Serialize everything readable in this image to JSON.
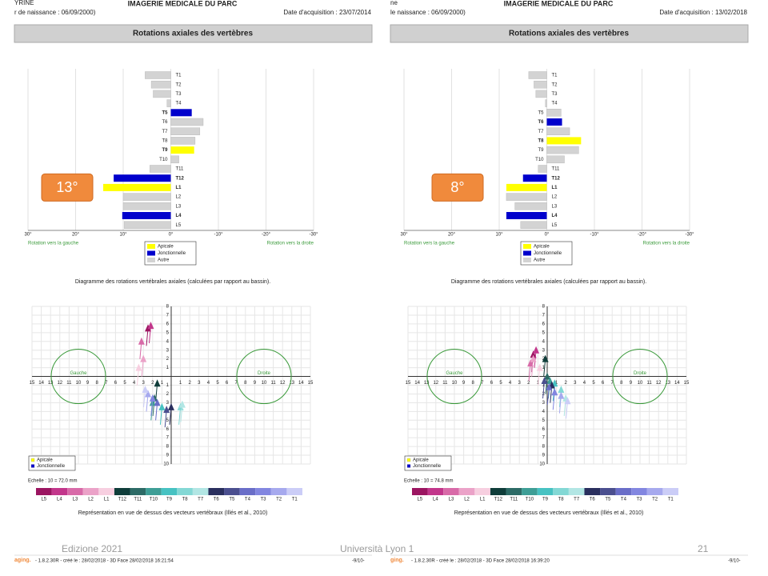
{
  "panels": [
    {
      "patient": "YRINE",
      "birth": "r de naissance : 06/09/2000)",
      "clinic": "IMAGERIE MEDICALE DU PARC",
      "date": "Date d'acquisition : 23/07/2014",
      "section": "Rotations axiales des vertèbres",
      "left_label": "Rotation vers la gauche",
      "right_label": "Rotation vers la droite",
      "caption": "Diagramme des rotations vertébrales axiales (calculées par rapport au bassin).",
      "vectors": {
        "type": "scatter",
        "gauche": "Gauche",
        "droite": "Droite",
        "xlim": [
          -15,
          15
        ],
        "ylim": [
          -10,
          8
        ],
        "xticks": [
          {
            "value": -15,
            "label": "15"
          },
          {
            "value": -14,
            "label": "14"
          },
          {
            "value": -13,
            "label": "13"
          },
          {
            "value": -12,
            "label": "12"
          },
          {
            "value": -11,
            "label": "11"
          },
          {
            "value": -10,
            "label": "10"
          },
          {
            "value": -9,
            "label": "9"
          },
          {
            "value": -8,
            "label": "8"
          },
          {
            "value": -7,
            "label": "7"
          },
          {
            "value": -6,
            "label": "6"
          },
          {
            "value": -5,
            "label": "5"
          },
          {
            "value": -4,
            "label": "4"
          },
          {
            "value": -3,
            "label": "3"
          },
          {
            "value": -2,
            "label": "2"
          },
          {
            "value": -1,
            "label": "1"
          },
          1,
          2,
          3,
          4,
          5,
          6,
          7,
          8,
          9,
          10,
          11,
          12,
          13,
          14,
          15
        ],
        "yticks": [
          8,
          7,
          6,
          5,
          4,
          3,
          2,
          1,
          {
            "value": -1,
            "label": "1"
          },
          {
            "value": -2,
            "label": "2"
          },
          {
            "value": -3,
            "label": "3"
          },
          {
            "value": -4,
            "label": "4"
          },
          {
            "value": -5,
            "label": "5"
          },
          {
            "value": -6,
            "label": "6"
          },
          {
            "value": -7,
            "label": "7"
          },
          {
            "value": -8,
            "label": "8"
          },
          {
            "value": -9,
            "label": "9"
          },
          {
            "value": -10,
            "label": "10"
          }
        ],
        "x": [
          -2.5,
          -2.2,
          -3.2,
          -3,
          -3.5,
          -1.5,
          -1.8,
          -2,
          -1,
          1,
          1.2,
          0,
          -0.5,
          -1.5,
          -2,
          -2.5,
          -2.8
        ],
        "y": [
          5.5,
          5.8,
          4,
          2,
          1,
          -0.8,
          -2.5,
          -3,
          -3.5,
          -3.5,
          -3.2,
          -3.5,
          -3.8,
          -3,
          -2.5,
          -2,
          -1.5
        ],
        "legend": [
          "Apicale",
          "Jonctionnelle"
        ]
      },
      "echelle": "Echelle : 10 = 72.0 mm",
      "scale": {
        "labels": [
          "L5",
          "L4",
          "L3",
          "L2",
          "L1",
          "T12",
          "T11",
          "T10",
          "T9",
          "T8",
          "T7",
          "T6",
          "T5",
          "T4",
          "T3",
          "T2",
          "T1"
        ],
        "colors": [
          "#9b1561",
          "#c2368b",
          "#d86aa8",
          "#eba2c8",
          "#f7cfe0",
          "#0f3d3a",
          "#2d6b66",
          "#3e9e96",
          "#47c2c2",
          "#83d8d5",
          "#b2e6e4",
          "#2a2f5e",
          "#4b4f8f",
          "#6a6ec8",
          "#8286e0",
          "#a6a9ee",
          "#cbcdf7"
        ]
      },
      "caption2": "Représentation en vue de dessus des vecteurs vertébraux (Illés et al., 2010)",
      "footer": {
        "brand": "aging.",
        "info": "- 1.8.2.30R - créé le : 28/02/2018 - 3D Face 28/02/2018 16:21:54",
        "page": "-9/10-"
      }
    },
    {
      "patient": "ne",
      "birth": "le naissance : 06/09/2000)",
      "clinic": "IMAGERIE MEDICALE DU PARC",
      "date": "Date d'acquisition : 13/02/2018",
      "section": "Rotations axiales des vertèbres",
      "left_label": "Rotation vers la gauche",
      "right_label": "Rotation vers la droite",
      "caption": "Diagramme des rotations vertébrales axiales (calculées par rapport au bassin).",
      "vectors": {
        "type": "scatter",
        "gauche": "Gauche",
        "droite": "Droite",
        "xlim": [
          -15,
          15
        ],
        "ylim": [
          -10,
          8
        ],
        "xticks": [
          {
            "value": -15,
            "label": "15"
          },
          {
            "value": -14,
            "label": "14"
          },
          {
            "value": -13,
            "label": "13"
          },
          {
            "value": -12,
            "label": "12"
          },
          {
            "value": -11,
            "label": "11"
          },
          {
            "value": -10,
            "label": "10"
          },
          {
            "value": -9,
            "label": "9"
          },
          {
            "value": -8,
            "label": "8"
          },
          {
            "value": -7,
            "label": "7"
          },
          {
            "value": -6,
            "label": "6"
          },
          {
            "value": -5,
            "label": "5"
          },
          {
            "value": -4,
            "label": "4"
          },
          {
            "value": -3,
            "label": "3"
          },
          {
            "value": -2,
            "label": "2"
          },
          {
            "value": -1,
            "label": "1"
          },
          1,
          2,
          3,
          4,
          5,
          6,
          7,
          8,
          9,
          10,
          11,
          12,
          13,
          14,
          15
        ],
        "yticks": [
          8,
          7,
          6,
          5,
          4,
          3,
          2,
          1,
          {
            "value": -1,
            "label": "1"
          },
          {
            "value": -2,
            "label": "2"
          },
          {
            "value": -3,
            "label": "3"
          },
          {
            "value": -4,
            "label": "4"
          },
          {
            "value": -5,
            "label": "5"
          },
          {
            "value": -6,
            "label": "6"
          },
          {
            "value": -7,
            "label": "7"
          },
          {
            "value": -8,
            "label": "8"
          },
          {
            "value": -9,
            "label": "9"
          },
          {
            "value": -10,
            "label": "10"
          }
        ],
        "x": [
          -1.5,
          -1.2,
          -1.8,
          -1.5,
          -0.8,
          -0.2,
          0,
          0.3,
          0.8,
          1.5,
          2,
          0.5,
          -0.3,
          0.2,
          0.8,
          1.5,
          2.2
        ],
        "y": [
          2.5,
          3,
          1.5,
          2,
          1,
          2,
          0,
          -0.5,
          -0.8,
          -1.5,
          -2.5,
          -1,
          -0.5,
          -1.2,
          -1.8,
          -2.2,
          -2.8
        ],
        "legend": [
          "Apicale",
          "Jonctionnelle"
        ]
      },
      "echelle": "Echelle : 10 = 74.8 mm",
      "scale": {
        "labels": [
          "L5",
          "L4",
          "L3",
          "L2",
          "L1",
          "T12",
          "T11",
          "T10",
          "T9",
          "T8",
          "T7",
          "T6",
          "T5",
          "T4",
          "T3",
          "T2",
          "T1"
        ],
        "colors": [
          "#9b1561",
          "#c2368b",
          "#d86aa8",
          "#eba2c8",
          "#f7cfe0",
          "#0f3d3a",
          "#2d6b66",
          "#3e9e96",
          "#47c2c2",
          "#83d8d5",
          "#b2e6e4",
          "#2a2f5e",
          "#4b4f8f",
          "#6a6ec8",
          "#8286e0",
          "#a6a9ee",
          "#cbcdf7"
        ]
      },
      "caption2": "Représentation en vue de dessus des vecteurs vertébraux (Illés et al., 2010)",
      "footer": {
        "brand": "ging.",
        "info": "- 1.8.2.30R - créé le : 28/02/2018 - 3D Face 28/02/2018 16:39:20",
        "page": "-9/10-"
      }
    }
  ],
  "chart_data": [
    {
      "type": "bar",
      "orientation": "horizontal",
      "grid": true,
      "categories": [
        "T1",
        "T2",
        "T3",
        "T4",
        "T5",
        "T6",
        "T7",
        "T8",
        "T9",
        "T10",
        "T11",
        "T12",
        "L1",
        "L2",
        "L3",
        "L4",
        "L5"
      ],
      "series": [
        {
          "name": "Apicale",
          "color": "#ffff00",
          "values": [
            null,
            null,
            null,
            null,
            null,
            null,
            null,
            null,
            -4.9,
            null,
            null,
            null,
            14.2,
            null,
            null,
            null,
            null
          ]
        },
        {
          "name": "Jonctionnelle",
          "color": "#0000cc",
          "values": [
            null,
            null,
            null,
            null,
            -4.4,
            null,
            null,
            null,
            null,
            null,
            null,
            12.0,
            null,
            null,
            null,
            10.2,
            null
          ]
        },
        {
          "name": "Autre",
          "color": "#d3d3d3",
          "values": [
            5.4,
            4.1,
            3.7,
            0.8,
            null,
            -6.8,
            -6.1,
            -5.1,
            null,
            -1.7,
            4.4,
            null,
            null,
            10,
            10,
            null,
            9.8
          ]
        }
      ],
      "xlim": [
        30,
        -30
      ],
      "xticks": [
        {
          "value": 30,
          "label": "30°"
        },
        {
          "value": 20,
          "label": "20°"
        },
        {
          "value": 10,
          "label": "10°"
        },
        {
          "value": 0,
          "label": "0°"
        },
        {
          "value": -10,
          "label": "-10°"
        },
        {
          "value": -20,
          "label": "-20°"
        },
        {
          "value": -30,
          "label": "-30°"
        }
      ],
      "annotation": "13°"
    },
    {
      "type": "bar",
      "orientation": "horizontal",
      "grid": true,
      "categories": [
        "T1",
        "T2",
        "T3",
        "T4",
        "T5",
        "T6",
        "T7",
        "T8",
        "T9",
        "T10",
        "T11",
        "T12",
        "L1",
        "L2",
        "L3",
        "L4",
        "L5"
      ],
      "series": [
        {
          "name": "Apicale",
          "color": "#ffff00",
          "values": [
            null,
            null,
            null,
            null,
            null,
            null,
            null,
            -7.2,
            null,
            null,
            null,
            null,
            8.5,
            null,
            null,
            null,
            null
          ]
        },
        {
          "name": "Jonctionnelle",
          "color": "#0000cc",
          "values": [
            null,
            null,
            null,
            null,
            null,
            -3.2,
            null,
            null,
            null,
            null,
            null,
            5.0,
            null,
            null,
            null,
            8.5,
            null
          ]
        },
        {
          "name": "Autre",
          "color": "#d3d3d3",
          "values": [
            3.8,
            2.7,
            2.3,
            0.3,
            -3.0,
            null,
            -4.8,
            null,
            -6.7,
            -3.7,
            1.8,
            null,
            null,
            8.5,
            6.7,
            null,
            5.5
          ]
        }
      ],
      "xlim": [
        30,
        -30
      ],
      "xticks": [
        {
          "value": 30,
          "label": "30°"
        },
        {
          "value": 20,
          "label": "20°"
        },
        {
          "value": 10,
          "label": "10°"
        },
        {
          "value": 0,
          "label": "0°"
        },
        {
          "value": -10,
          "label": "-10°"
        },
        {
          "value": -20,
          "label": "-20°"
        },
        {
          "value": -30,
          "label": "-30°"
        }
      ],
      "annotation": "8°"
    }
  ],
  "slide_footer": {
    "edition": "Edizione 2021",
    "university": "Università Lyon 1",
    "page": "21"
  }
}
